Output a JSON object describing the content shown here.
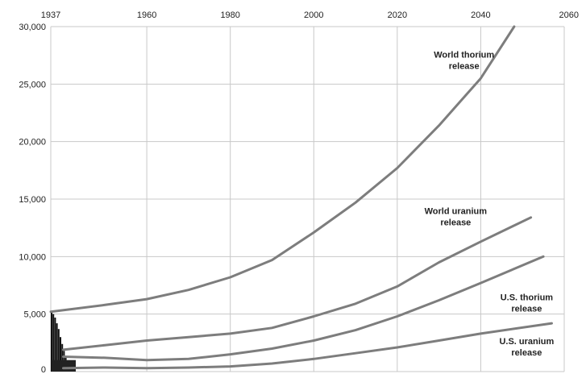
{
  "chart_data": {
    "type": "line",
    "title": "",
    "xlabel": "",
    "ylabel": "",
    "grid": true,
    "xlim": [
      1937,
      2060
    ],
    "ylim": [
      0,
      30000
    ],
    "x_ticks": [
      1937,
      1960,
      1980,
      2000,
      2020,
      2040,
      2060
    ],
    "y_ticks": [
      0,
      5000,
      10000,
      15000,
      20000,
      25000,
      30000
    ],
    "x_tick_labels": [
      "1937",
      "1960",
      "1980",
      "2000",
      "2020",
      "2040",
      "2060"
    ],
    "y_tick_labels": [
      "0",
      "5,000",
      "10,000",
      "15,000",
      "20,000",
      "25,000",
      "30,000"
    ],
    "series": [
      {
        "name": "World thorium release",
        "label_lines": [
          "World thorium",
          "release"
        ],
        "label_anchor": [
          2036,
          27300
        ],
        "x": [
          1937,
          1950,
          1960,
          1970,
          1980,
          1990,
          2000,
          2010,
          2020,
          2030,
          2040,
          2048
        ],
        "y": [
          5200,
          5800,
          6300,
          7100,
          8200,
          9700,
          12100,
          14700,
          17700,
          21400,
          25500,
          30000
        ]
      },
      {
        "name": "World uranium release",
        "label_lines": [
          "World uranium",
          "release"
        ],
        "label_anchor": [
          2034,
          13700
        ],
        "x": [
          1940,
          1950,
          1960,
          1970,
          1980,
          1990,
          2000,
          2010,
          2020,
          2030,
          2040,
          2052
        ],
        "y": [
          1900,
          2300,
          2700,
          3000,
          3300,
          3800,
          4800,
          5900,
          7400,
          9500,
          11300,
          13400
        ]
      },
      {
        "name": "U.S. thorium release",
        "label_lines": [
          "U.S. thorium",
          "release"
        ],
        "label_anchor": [
          2051,
          6200
        ],
        "x": [
          1940,
          1950,
          1960,
          1970,
          1980,
          1990,
          2000,
          2010,
          2020,
          2030,
          2040,
          2055
        ],
        "y": [
          1300,
          1200,
          1000,
          1100,
          1500,
          2000,
          2700,
          3600,
          4800,
          6200,
          7700,
          10000
        ]
      },
      {
        "name": "U.S. uranium release",
        "label_lines": [
          "U.S. uranium",
          "release"
        ],
        "label_anchor": [
          2051,
          2400
        ],
        "x": [
          1940,
          1950,
          1960,
          1970,
          1980,
          1990,
          2000,
          2010,
          2020,
          2030,
          2040,
          2057
        ],
        "y": [
          300,
          350,
          300,
          350,
          450,
          700,
          1100,
          1600,
          2100,
          2700,
          3300,
          4200
        ]
      }
    ]
  }
}
